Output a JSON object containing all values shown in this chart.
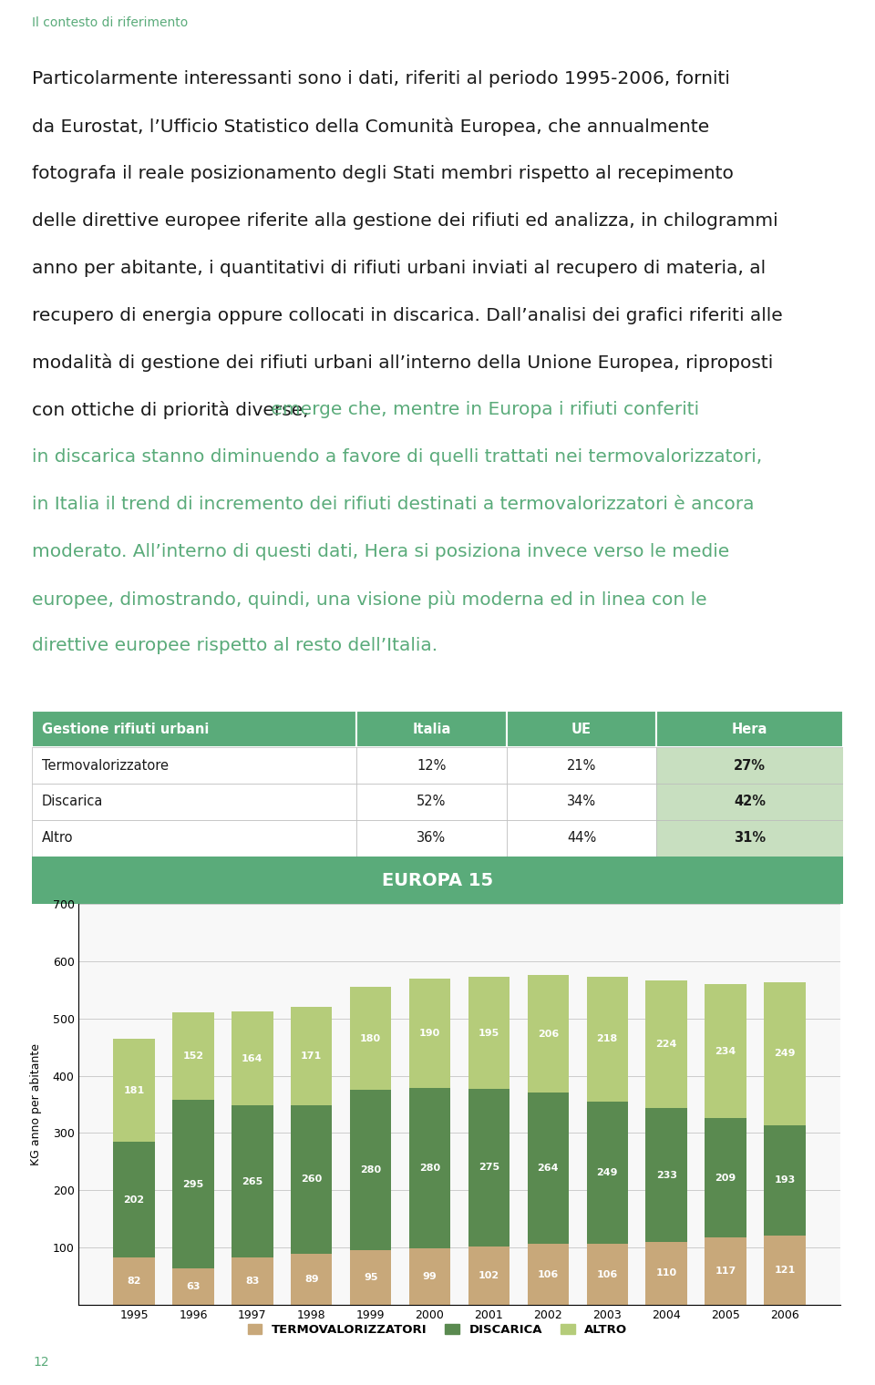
{
  "title_tag": "Il contesto di riferimento",
  "title_tag_color": "#5aab7a",
  "para_lines": [
    {
      "text": "Particolarmente interessanti sono i dati, riferiti al periodo 1995-2006, forniti",
      "color": "#1a1a1a"
    },
    {
      "text": "da Eurostat, l’Ufficio Statistico della Comunità Europea, che annualmente",
      "color": "#1a1a1a"
    },
    {
      "text": "fotografa il reale posizionamento degli Stati membri rispetto al recepimento",
      "color": "#1a1a1a"
    },
    {
      "text": "delle direttive europee riferite alla gestione dei rifiuti ed analizza, in chilogrammi",
      "color": "#1a1a1a"
    },
    {
      "text": "anno per abitante, i quantitativi di rifiuti urbani inviati al recupero di materia, al",
      "color": "#1a1a1a"
    },
    {
      "text": "recupero di energia oppure collocati in discarica. Dall’analisi dei grafici riferiti alle",
      "color": "#1a1a1a"
    },
    {
      "text": "modalità di gestione dei rifiuti urbani all’interno della Unione Europea, riproposti",
      "color": "#1a1a1a"
    },
    {
      "text": "con ottiche di priorità diverse, emerge che, mentre in Europa i rifiuti conferiti",
      "color": "#mixed"
    },
    {
      "text": "in discarica stanno diminuendo a favore di quelli trattati nei termovalorizzatori,",
      "color": "#5aab7a"
    },
    {
      "text": "in Italia il trend di incremento dei rifiuti destinati a termovalorizzatori è ancora",
      "color": "#5aab7a"
    },
    {
      "text": "moderato. All’interno di questi dati, Hera si posiziona invece verso le medie",
      "color": "#5aab7a"
    },
    {
      "text": "europee, dimostrando, quindi, una visione più moderna ed in linea con le",
      "color": "#5aab7a"
    },
    {
      "text": "direttive europee rispetto al resto dell’Italia.",
      "color": "#5aab7a"
    }
  ],
  "mixed_line_black": "con ottiche di priorità diverse,",
  "mixed_line_green": " emerge che, mentre in Europa i rifiuti conferiti",
  "table_header": [
    "Gestione rifiuti urbani",
    "Italia",
    "UE",
    "Hera"
  ],
  "table_rows": [
    [
      "Termovalorizzatore",
      "12%",
      "21%",
      "27%"
    ],
    [
      "Discarica",
      "52%",
      "34%",
      "42%"
    ],
    [
      "Altro",
      "36%",
      "44%",
      "31%"
    ]
  ],
  "table_header_bg": "#5aab7a",
  "table_header_color": "#ffffff",
  "table_hera_bg": "#c8dfc0",
  "chart_title": "EUROPA 15",
  "chart_title_bg": "#5aab7a",
  "chart_title_color": "#ffffff",
  "years": [
    "1995",
    "1996",
    "1997",
    "1998",
    "1999",
    "2000",
    "2001",
    "2002",
    "2003",
    "2004",
    "2005",
    "2006"
  ],
  "termovalorizzatori": [
    82,
    63,
    83,
    89,
    95,
    99,
    102,
    106,
    106,
    110,
    117,
    121
  ],
  "discarica": [
    202,
    295,
    265,
    260,
    280,
    280,
    275,
    264,
    249,
    233,
    209,
    193
  ],
  "altro": [
    181,
    152,
    164,
    171,
    180,
    190,
    195,
    206,
    218,
    224,
    234,
    249
  ],
  "color_termovalorizzatori": "#c8a87a",
  "color_discarica": "#5a8a50",
  "color_altro": "#b5cc7a",
  "ylabel": "KG anno per abitante",
  "ylim": [
    0,
    700
  ],
  "yticks": [
    0,
    100,
    200,
    300,
    400,
    500,
    600,
    700
  ],
  "page_number": "12",
  "background_color": "#ffffff"
}
